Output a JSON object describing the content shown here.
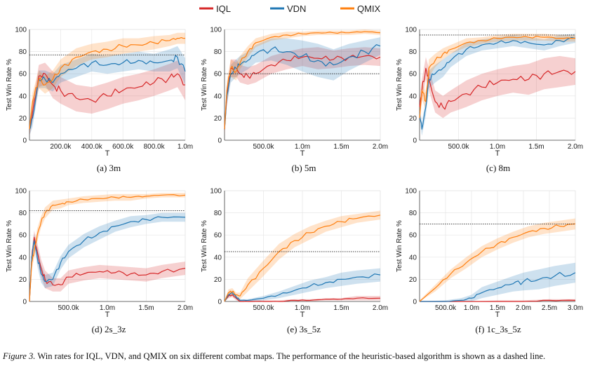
{
  "legend": [
    {
      "name": "IQL",
      "color": "#d62728"
    },
    {
      "name": "VDN",
      "color": "#1f77b4"
    },
    {
      "name": "QMIX",
      "color": "#ff7f0e"
    }
  ],
  "figure_label": "Figure 3.",
  "caption": "Win rates for IQL, VDN, and QMIX on six different combat maps. The performance of the heuristic-based algorithm is shown as a dashed line.",
  "chart_data": [
    {
      "type": "line",
      "title": "(a)  3m",
      "xlabel": "T",
      "ylabel": "Test Win Rate %",
      "xlim": [
        0,
        1000000
      ],
      "ylim": [
        0,
        100
      ],
      "xticks": [
        200000,
        400000,
        600000,
        800000,
        1000000
      ],
      "xticklabels": [
        "200.0k",
        "400.0k",
        "600.0k",
        "800.0k",
        "1.0m"
      ],
      "yticks": [
        0,
        20,
        40,
        60,
        80,
        100
      ],
      "heuristic": 77,
      "series": [
        {
          "name": "IQL",
          "x": [
            0,
            20000,
            60000,
            100000,
            150000,
            200000,
            300000,
            400000,
            500000,
            600000,
            700000,
            800000,
            900000,
            950000,
            1000000
          ],
          "y": [
            10,
            25,
            58,
            60,
            50,
            45,
            38,
            36,
            40,
            45,
            48,
            52,
            57,
            60,
            50
          ],
          "band": [
            6,
            8,
            10,
            10,
            12,
            12,
            12,
            12,
            12,
            12,
            12,
            12,
            12,
            12,
            14
          ]
        },
        {
          "name": "VDN",
          "x": [
            0,
            20000,
            60000,
            100000,
            150000,
            200000,
            300000,
            400000,
            500000,
            600000,
            700000,
            800000,
            900000,
            950000,
            1000000
          ],
          "y": [
            10,
            20,
            55,
            55,
            52,
            60,
            65,
            70,
            68,
            70,
            72,
            70,
            72,
            75,
            62
          ],
          "band": [
            6,
            8,
            8,
            8,
            8,
            8,
            8,
            8,
            8,
            8,
            8,
            8,
            10,
            10,
            12
          ]
        },
        {
          "name": "QMIX",
          "x": [
            0,
            20000,
            60000,
            100000,
            150000,
            200000,
            300000,
            400000,
            500000,
            600000,
            700000,
            800000,
            900000,
            950000,
            1000000
          ],
          "y": [
            10,
            35,
            55,
            50,
            55,
            65,
            75,
            80,
            82,
            85,
            86,
            88,
            90,
            92,
            92
          ],
          "band": [
            6,
            8,
            8,
            8,
            8,
            8,
            8,
            7,
            7,
            7,
            6,
            6,
            5,
            5,
            5
          ]
        }
      ]
    },
    {
      "type": "line",
      "title": "(b)  5m",
      "xlabel": "T",
      "ylabel": "Test Win Rate %",
      "xlim": [
        0,
        2000000
      ],
      "ylim": [
        0,
        100
      ],
      "xticks": [
        500000,
        1000000,
        1500000,
        2000000
      ],
      "xticklabels": [
        "500.0k",
        "1.0m",
        "1.5m",
        "2.0m"
      ],
      "yticks": [
        0,
        20,
        40,
        60,
        80,
        100
      ],
      "heuristic": 60,
      "series": [
        {
          "name": "IQL",
          "x": [
            0,
            30000,
            80000,
            150000,
            200000,
            300000,
            400000,
            600000,
            800000,
            1000000,
            1200000,
            1400000,
            1600000,
            1800000,
            2000000
          ],
          "y": [
            10,
            40,
            65,
            65,
            60,
            58,
            60,
            68,
            72,
            75,
            74,
            73,
            75,
            76,
            75
          ],
          "band": [
            6,
            8,
            8,
            8,
            8,
            8,
            8,
            8,
            8,
            8,
            10,
            8,
            8,
            8,
            8
          ]
        },
        {
          "name": "VDN",
          "x": [
            0,
            30000,
            80000,
            150000,
            200000,
            300000,
            400000,
            600000,
            800000,
            1000000,
            1200000,
            1400000,
            1600000,
            1800000,
            2000000
          ],
          "y": [
            10,
            40,
            60,
            65,
            68,
            72,
            78,
            82,
            80,
            76,
            72,
            68,
            75,
            80,
            85
          ],
          "band": [
            6,
            8,
            8,
            8,
            8,
            8,
            8,
            10,
            12,
            14,
            15,
            14,
            12,
            10,
            8
          ]
        },
        {
          "name": "QMIX",
          "x": [
            0,
            30000,
            80000,
            150000,
            200000,
            300000,
            400000,
            600000,
            800000,
            1000000,
            1200000,
            1400000,
            1600000,
            1800000,
            2000000
          ],
          "y": [
            10,
            45,
            65,
            62,
            70,
            80,
            88,
            93,
            95,
            96,
            97,
            97,
            97,
            98,
            97
          ],
          "band": [
            6,
            8,
            8,
            8,
            6,
            5,
            4,
            3,
            3,
            2,
            2,
            2,
            2,
            2,
            2
          ]
        }
      ]
    },
    {
      "type": "line",
      "title": "(c)  8m",
      "xlabel": "T",
      "ylabel": "Test Win Rate %",
      "xlim": [
        0,
        2000000
      ],
      "ylim": [
        0,
        100
      ],
      "xticks": [
        500000,
        1000000,
        1500000,
        2000000
      ],
      "xticklabels": [
        "500.0k",
        "1.0m",
        "1.5m",
        "2.0m"
      ],
      "yticks": [
        0,
        20,
        40,
        60,
        80,
        100
      ],
      "heuristic": 95,
      "series": [
        {
          "name": "IQL",
          "x": [
            0,
            30000,
            80000,
            120000,
            200000,
            300000,
            400000,
            600000,
            800000,
            1000000,
            1200000,
            1400000,
            1600000,
            1800000,
            2000000
          ],
          "y": [
            30,
            45,
            65,
            55,
            35,
            30,
            35,
            42,
            48,
            52,
            55,
            55,
            60,
            62,
            62
          ],
          "band": [
            8,
            10,
            10,
            10,
            10,
            10,
            10,
            12,
            12,
            12,
            12,
            14,
            14,
            14,
            12
          ]
        },
        {
          "name": "VDN",
          "x": [
            0,
            30000,
            80000,
            120000,
            200000,
            300000,
            400000,
            600000,
            800000,
            1000000,
            1200000,
            1400000,
            1600000,
            1800000,
            2000000
          ],
          "y": [
            25,
            10,
            30,
            55,
            60,
            65,
            72,
            82,
            86,
            88,
            90,
            88,
            86,
            90,
            92
          ],
          "band": [
            6,
            6,
            8,
            8,
            8,
            8,
            6,
            6,
            5,
            5,
            5,
            5,
            5,
            5,
            4
          ]
        },
        {
          "name": "QMIX",
          "x": [
            0,
            30000,
            80000,
            120000,
            200000,
            300000,
            400000,
            600000,
            800000,
            1000000,
            1200000,
            1400000,
            1600000,
            1800000,
            2000000
          ],
          "y": [
            20,
            45,
            35,
            65,
            72,
            78,
            82,
            88,
            90,
            92,
            93,
            93,
            93,
            92,
            92
          ],
          "band": [
            6,
            8,
            8,
            8,
            6,
            5,
            4,
            4,
            3,
            3,
            3,
            3,
            3,
            3,
            3
          ]
        }
      ]
    },
    {
      "type": "line",
      "title": "(d)  2s_3z",
      "xlabel": "T",
      "ylabel": "Test Win Rate %",
      "xlim": [
        0,
        2000000
      ],
      "ylim": [
        0,
        100
      ],
      "xticks": [
        500000,
        1000000,
        1500000,
        2000000
      ],
      "xticklabels": [
        "500.0k",
        "1.0m",
        "1.5m",
        "2.0m"
      ],
      "yticks": [
        0,
        20,
        40,
        60,
        80,
        100
      ],
      "heuristic": 82,
      "series": [
        {
          "name": "IQL",
          "x": [
            0,
            30000,
            60000,
            100000,
            150000,
            200000,
            300000,
            400000,
            500000,
            700000,
            900000,
            1100000,
            1300000,
            1500000,
            1700000,
            2000000
          ],
          "y": [
            0,
            40,
            58,
            45,
            30,
            20,
            15,
            15,
            22,
            25,
            27,
            26,
            25,
            24,
            27,
            30
          ],
          "band": [
            2,
            6,
            6,
            8,
            8,
            8,
            6,
            6,
            6,
            6,
            6,
            6,
            6,
            6,
            6,
            6
          ]
        },
        {
          "name": "VDN",
          "x": [
            0,
            30000,
            60000,
            100000,
            150000,
            200000,
            300000,
            400000,
            500000,
            700000,
            900000,
            1100000,
            1300000,
            1500000,
            1700000,
            2000000
          ],
          "y": [
            0,
            40,
            55,
            40,
            25,
            18,
            20,
            35,
            45,
            55,
            62,
            68,
            72,
            74,
            76,
            76
          ],
          "band": [
            2,
            6,
            6,
            8,
            8,
            6,
            6,
            6,
            6,
            6,
            6,
            5,
            5,
            4,
            4,
            4
          ]
        },
        {
          "name": "QMIX",
          "x": [
            0,
            30000,
            60000,
            100000,
            150000,
            200000,
            300000,
            400000,
            500000,
            700000,
            900000,
            1100000,
            1300000,
            1500000,
            1700000,
            2000000
          ],
          "y": [
            0,
            35,
            45,
            60,
            72,
            80,
            87,
            88,
            90,
            92,
            93,
            94,
            94,
            95,
            96,
            96
          ],
          "band": [
            2,
            6,
            6,
            6,
            5,
            5,
            4,
            4,
            3,
            3,
            3,
            3,
            3,
            2,
            2,
            2
          ]
        }
      ]
    },
    {
      "type": "line",
      "title": "(e)  3s_5z",
      "xlabel": "T",
      "ylabel": "Test Win Rate %",
      "xlim": [
        0,
        2000000
      ],
      "ylim": [
        0,
        100
      ],
      "xticks": [
        500000,
        1000000,
        1500000,
        2000000
      ],
      "xticklabels": [
        "500.0k",
        "1.0m",
        "1.5m",
        "2.0m"
      ],
      "yticks": [
        0,
        20,
        40,
        60,
        80,
        100
      ],
      "heuristic": 45,
      "series": [
        {
          "name": "IQL",
          "x": [
            0,
            50000,
            100000,
            150000,
            200000,
            300000,
            500000,
            700000,
            900000,
            1100000,
            1300000,
            1500000,
            1700000,
            2000000
          ],
          "y": [
            0,
            5,
            6,
            3,
            0,
            0,
            0,
            0,
            1,
            1,
            2,
            2,
            3,
            3
          ],
          "band": [
            1,
            2,
            2,
            2,
            1,
            1,
            1,
            1,
            1,
            1,
            1,
            1,
            2,
            2
          ]
        },
        {
          "name": "VDN",
          "x": [
            0,
            50000,
            100000,
            150000,
            200000,
            300000,
            500000,
            700000,
            900000,
            1100000,
            1300000,
            1500000,
            1700000,
            2000000
          ],
          "y": [
            0,
            6,
            8,
            4,
            1,
            1,
            3,
            6,
            10,
            14,
            17,
            20,
            22,
            24
          ],
          "band": [
            1,
            2,
            2,
            2,
            1,
            1,
            2,
            3,
            4,
            5,
            5,
            6,
            6,
            6
          ]
        },
        {
          "name": "QMIX",
          "x": [
            0,
            50000,
            100000,
            150000,
            200000,
            300000,
            500000,
            700000,
            900000,
            1100000,
            1300000,
            1500000,
            1700000,
            2000000
          ],
          "y": [
            0,
            8,
            9,
            6,
            5,
            15,
            30,
            45,
            55,
            62,
            68,
            72,
            75,
            78
          ],
          "band": [
            1,
            3,
            3,
            2,
            3,
            6,
            7,
            7,
            6,
            6,
            5,
            5,
            4,
            4
          ]
        }
      ]
    },
    {
      "type": "line",
      "title": "(f)  1c_3s_5z",
      "xlabel": "T",
      "ylabel": "Test Win Rate %",
      "xlim": [
        0,
        3000000
      ],
      "ylim": [
        0,
        100
      ],
      "xticks": [
        500000,
        1000000,
        1500000,
        2000000,
        2500000,
        3000000
      ],
      "xticklabels": [
        "500.0k",
        "1.0m",
        "1.5m",
        "2.0m",
        "2.5m",
        "3.0m"
      ],
      "yticks": [
        0,
        20,
        40,
        60,
        80,
        100
      ],
      "heuristic": 70,
      "series": [
        {
          "name": "IQL",
          "x": [
            0,
            500000,
            1000000,
            1500000,
            2000000,
            2500000,
            3000000
          ],
          "y": [
            0,
            0,
            0,
            0,
            0,
            1,
            1
          ],
          "band": [
            0,
            0,
            0,
            1,
            1,
            1,
            1
          ]
        },
        {
          "name": "VDN",
          "x": [
            0,
            500000,
            800000,
            1000000,
            1200000,
            1500000,
            1800000,
            2000000,
            2300000,
            2600000,
            3000000
          ],
          "y": [
            0,
            0,
            1,
            3,
            8,
            12,
            16,
            18,
            20,
            23,
            26
          ],
          "band": [
            0,
            1,
            2,
            3,
            5,
            6,
            7,
            8,
            9,
            9,
            9
          ]
        },
        {
          "name": "QMIX",
          "x": [
            0,
            300000,
            600000,
            900000,
            1200000,
            1500000,
            1800000,
            2100000,
            2400000,
            2700000,
            3000000
          ],
          "y": [
            0,
            12,
            25,
            35,
            45,
            52,
            58,
            63,
            66,
            68,
            70
          ],
          "band": [
            1,
            3,
            4,
            5,
            5,
            5,
            5,
            5,
            5,
            5,
            5
          ]
        }
      ]
    }
  ]
}
